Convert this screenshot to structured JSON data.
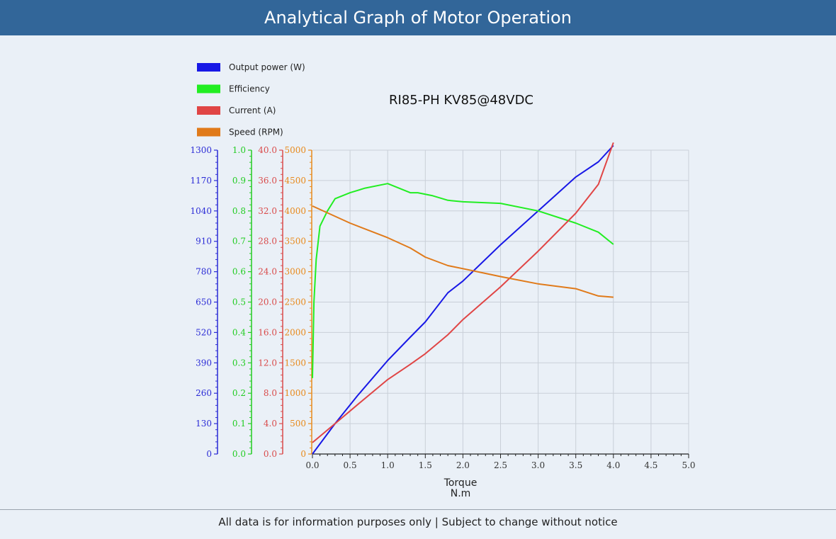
{
  "header": {
    "title": "Analytical Graph of Motor Operation"
  },
  "footer": {
    "note": "All data is for information purposes only | Subject to change without notice"
  },
  "chart_data": {
    "type": "line",
    "title": "RI85-PH KV85@48VDC",
    "xlabel": "Torque",
    "xlabel_unit": "N.m",
    "xlim": [
      0,
      5
    ],
    "x_ticks": [
      "0.0",
      "0.5",
      "1.0",
      "1.5",
      "2.0",
      "2.5",
      "3.0",
      "3.5",
      "4.0",
      "4.5",
      "5.0"
    ],
    "grid": true,
    "legend_position": "top-left",
    "y_axes": [
      {
        "id": "power",
        "color": "#2b2bd6",
        "ylim": [
          0,
          1300
        ],
        "ticks": [
          "0",
          "130",
          "260",
          "390",
          "520",
          "650",
          "780",
          "910",
          "1040",
          "1170",
          "1300"
        ]
      },
      {
        "id": "eff",
        "color": "#22cc22",
        "ylim": [
          0,
          1
        ],
        "ticks": [
          "0.0",
          "0.1",
          "0.2",
          "0.3",
          "0.4",
          "0.5",
          "0.6",
          "0.7",
          "0.8",
          "0.9",
          "1.0"
        ]
      },
      {
        "id": "current",
        "color": "#d94b4b",
        "ylim": [
          0,
          40
        ],
        "ticks": [
          "0.0",
          "4.0",
          "8.0",
          "12.0",
          "16.0",
          "20.0",
          "24.0",
          "28.0",
          "32.0",
          "36.0",
          "40.0"
        ]
      },
      {
        "id": "speed",
        "color": "#e8891a",
        "ylim": [
          0,
          5000
        ],
        "ticks": [
          "0",
          "500",
          "1000",
          "1500",
          "2000",
          "2500",
          "3000",
          "3500",
          "4000",
          "4500",
          "5000"
        ]
      }
    ],
    "series": [
      {
        "name": "Output power (W)",
        "axis": "power",
        "color": "#1818e6",
        "x": [
          0,
          0.3,
          0.6,
          1.0,
          1.3,
          1.5,
          1.8,
          2.0,
          2.5,
          3.0,
          3.5,
          3.8,
          4.0
        ],
        "values": [
          0,
          130,
          250,
          400,
          500,
          565,
          690,
          740,
          895,
          1040,
          1185,
          1250,
          1320
        ]
      },
      {
        "name": "Efficiency",
        "axis": "eff",
        "color": "#22ee22",
        "x": [
          0,
          0.02,
          0.05,
          0.1,
          0.2,
          0.3,
          0.5,
          0.7,
          1.0,
          1.3,
          1.4,
          1.6,
          1.8,
          2.0,
          2.5,
          3.0,
          3.5,
          3.8,
          4.0
        ],
        "values": [
          0.25,
          0.5,
          0.64,
          0.75,
          0.8,
          0.84,
          0.86,
          0.875,
          0.89,
          0.86,
          0.86,
          0.85,
          0.835,
          0.83,
          0.825,
          0.8,
          0.76,
          0.73,
          0.69
        ]
      },
      {
        "name": "Current (A)",
        "axis": "current",
        "color": "#e04545",
        "x": [
          0,
          0.3,
          0.6,
          1.0,
          1.3,
          1.5,
          1.8,
          2.0,
          2.5,
          3.0,
          3.5,
          3.8,
          4.0
        ],
        "values": [
          1.5,
          4.0,
          6.5,
          9.8,
          11.8,
          13.2,
          15.7,
          17.7,
          22.0,
          26.7,
          31.7,
          35.5,
          41.0
        ]
      },
      {
        "name": "Speed (RPM)",
        "axis": "speed",
        "color": "#e07a1a",
        "x": [
          0,
          0.5,
          1.0,
          1.3,
          1.5,
          1.8,
          2.0,
          2.5,
          3.0,
          3.5,
          3.8,
          4.0
        ],
        "values": [
          4080,
          3800,
          3560,
          3390,
          3240,
          3100,
          3050,
          2920,
          2800,
          2720,
          2600,
          2580
        ]
      }
    ]
  }
}
